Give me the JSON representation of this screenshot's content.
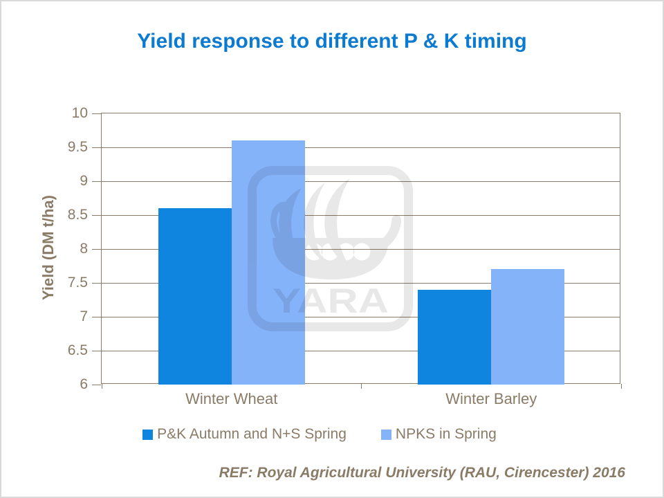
{
  "slide": {
    "title": "Yield response to different P & K timing",
    "reference": "REF: Royal Agricultural University (RAU, Cirencester) 2016"
  },
  "colors": {
    "title": "#0B7AD1",
    "axis_text": "#8A7B67",
    "grid": "#8A7C68",
    "series1": "#1085E0",
    "series2": "#85B3FA",
    "watermark_fill": "#000000",
    "watermark_opacity": "0.085",
    "slide_border": "#D9D9D9"
  },
  "watermark": {
    "logo": "yara-viking-ship",
    "text": "YARA"
  },
  "chart_data": {
    "type": "bar",
    "title": "Yield response to different P & K timing",
    "categories": [
      "Winter Wheat",
      "Winter Barley"
    ],
    "series": [
      {
        "name": "P&K Autumn and N+S Spring",
        "color": "#1085E0",
        "values": [
          8.6,
          7.4
        ]
      },
      {
        "name": "NPKS in Spring",
        "color": "#85B3FA",
        "values": [
          9.6,
          7.7
        ]
      }
    ],
    "xlabel": "",
    "ylabel": "Yield (DM t/ha)",
    "ylim": [
      6,
      10
    ],
    "ytick_step": 0.5,
    "ytick_labels": [
      "6",
      "6.5",
      "7",
      "7.5",
      "8",
      "8.5",
      "9",
      "9.5",
      "10"
    ],
    "grid": true,
    "legend_position": "bottom"
  }
}
